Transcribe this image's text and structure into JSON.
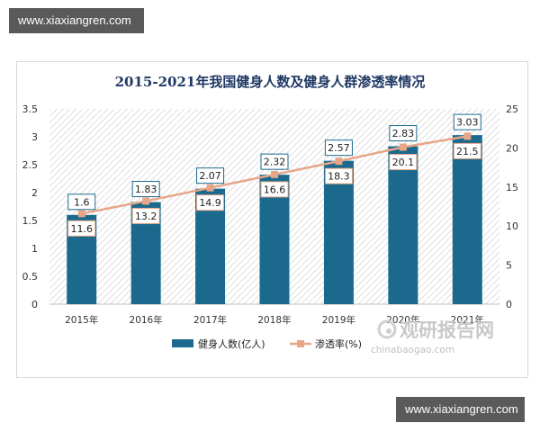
{
  "watermarks": {
    "top": "www.xiaxiangren.com",
    "bottom": "www.xiaxiangren.com"
  },
  "logo": {
    "cn": "观研报告网",
    "en": "chinabaogao.com"
  },
  "chart_data": {
    "type": "bar",
    "title": "2015-2021年我国健身人数及健身人群渗透率情况",
    "categories": [
      "2015年",
      "2016年",
      "2017年",
      "2018年",
      "2019年",
      "2020年",
      "2021年"
    ],
    "series": [
      {
        "name": "健身人数(亿人)",
        "type": "bar",
        "axis": "left",
        "values": [
          1.6,
          1.83,
          2.07,
          2.32,
          2.57,
          2.83,
          3.03
        ],
        "color": "#1b6a8e"
      },
      {
        "name": "渗透率(%)",
        "type": "line",
        "axis": "right",
        "values": [
          11.6,
          13.2,
          14.9,
          16.6,
          18.3,
          20.1,
          21.5
        ],
        "color": "#e8a688"
      }
    ],
    "ylim_left": [
      0,
      3.5
    ],
    "ylim_right": [
      0,
      25
    ],
    "yticks_left": [
      "0",
      "0.5",
      "1",
      "1.5",
      "2",
      "2.5",
      "3",
      "3.5"
    ],
    "yticks_right": [
      "0",
      "5",
      "10",
      "15",
      "20",
      "25"
    ],
    "grid": false,
    "legend": "bottom"
  }
}
